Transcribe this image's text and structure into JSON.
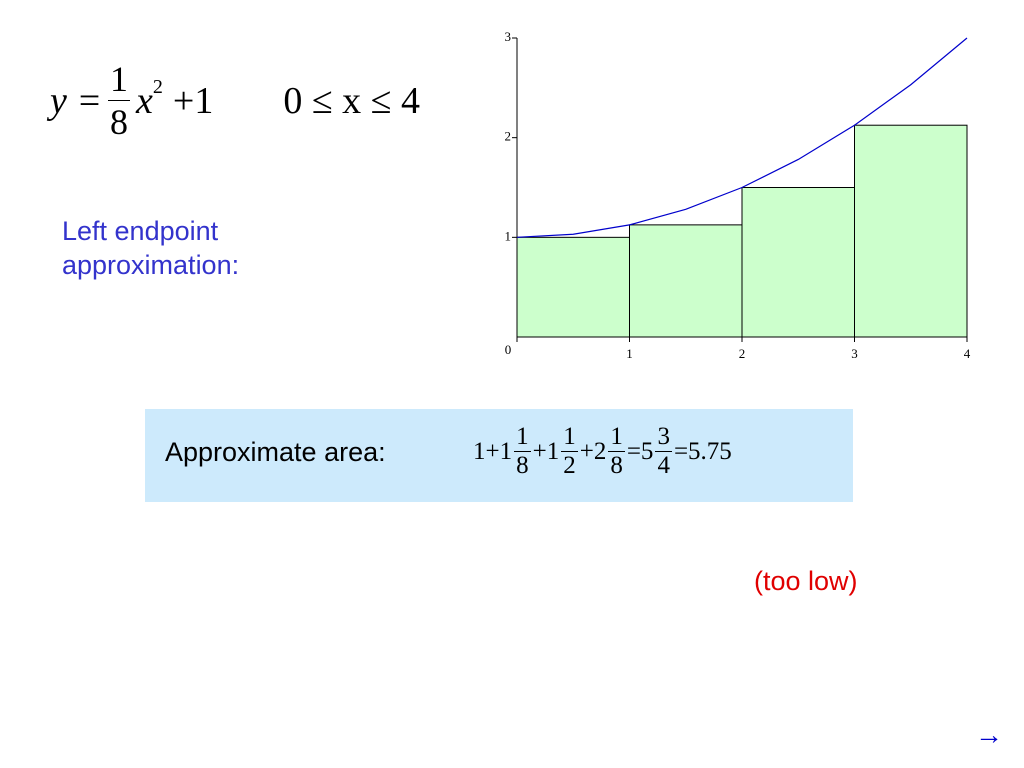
{
  "equation": {
    "lhs": "y =",
    "numerator": "1",
    "denominator": "8",
    "term": "x",
    "exponent": "2",
    "rest": "+1",
    "domain": "0 ≤ x ≤ 4"
  },
  "label": "Left endpoint approximation:",
  "chart_data": {
    "type": "histogram",
    "bins": [
      0,
      1,
      2,
      3,
      4
    ],
    "values": [
      1,
      1.125,
      1.5,
      2.125
    ],
    "color": "#ccffcc",
    "xlim": [
      0,
      4
    ],
    "ylim": [
      0,
      3
    ],
    "xticks": [
      0,
      1,
      2,
      3,
      4
    ],
    "yticks": [
      1,
      2,
      3
    ],
    "curve": {
      "color": "#0000cc",
      "x": [
        0,
        0.5,
        1,
        1.5,
        2,
        2.5,
        3,
        3.5,
        4
      ],
      "values": [
        1,
        1.03125,
        1.125,
        1.28125,
        1.5,
        1.78125,
        2.125,
        2.53125,
        3
      ]
    }
  },
  "area": {
    "label": "Approximate area:",
    "formula": [
      "1+1",
      {
        "num": "1",
        "den": "8"
      },
      "+1",
      {
        "num": "1",
        "den": "2"
      },
      "+2",
      {
        "num": "1",
        "den": "8"
      },
      "=5",
      {
        "num": "3",
        "den": "4"
      },
      "=5.75"
    ]
  },
  "verdict": "(too low)",
  "next": "→"
}
